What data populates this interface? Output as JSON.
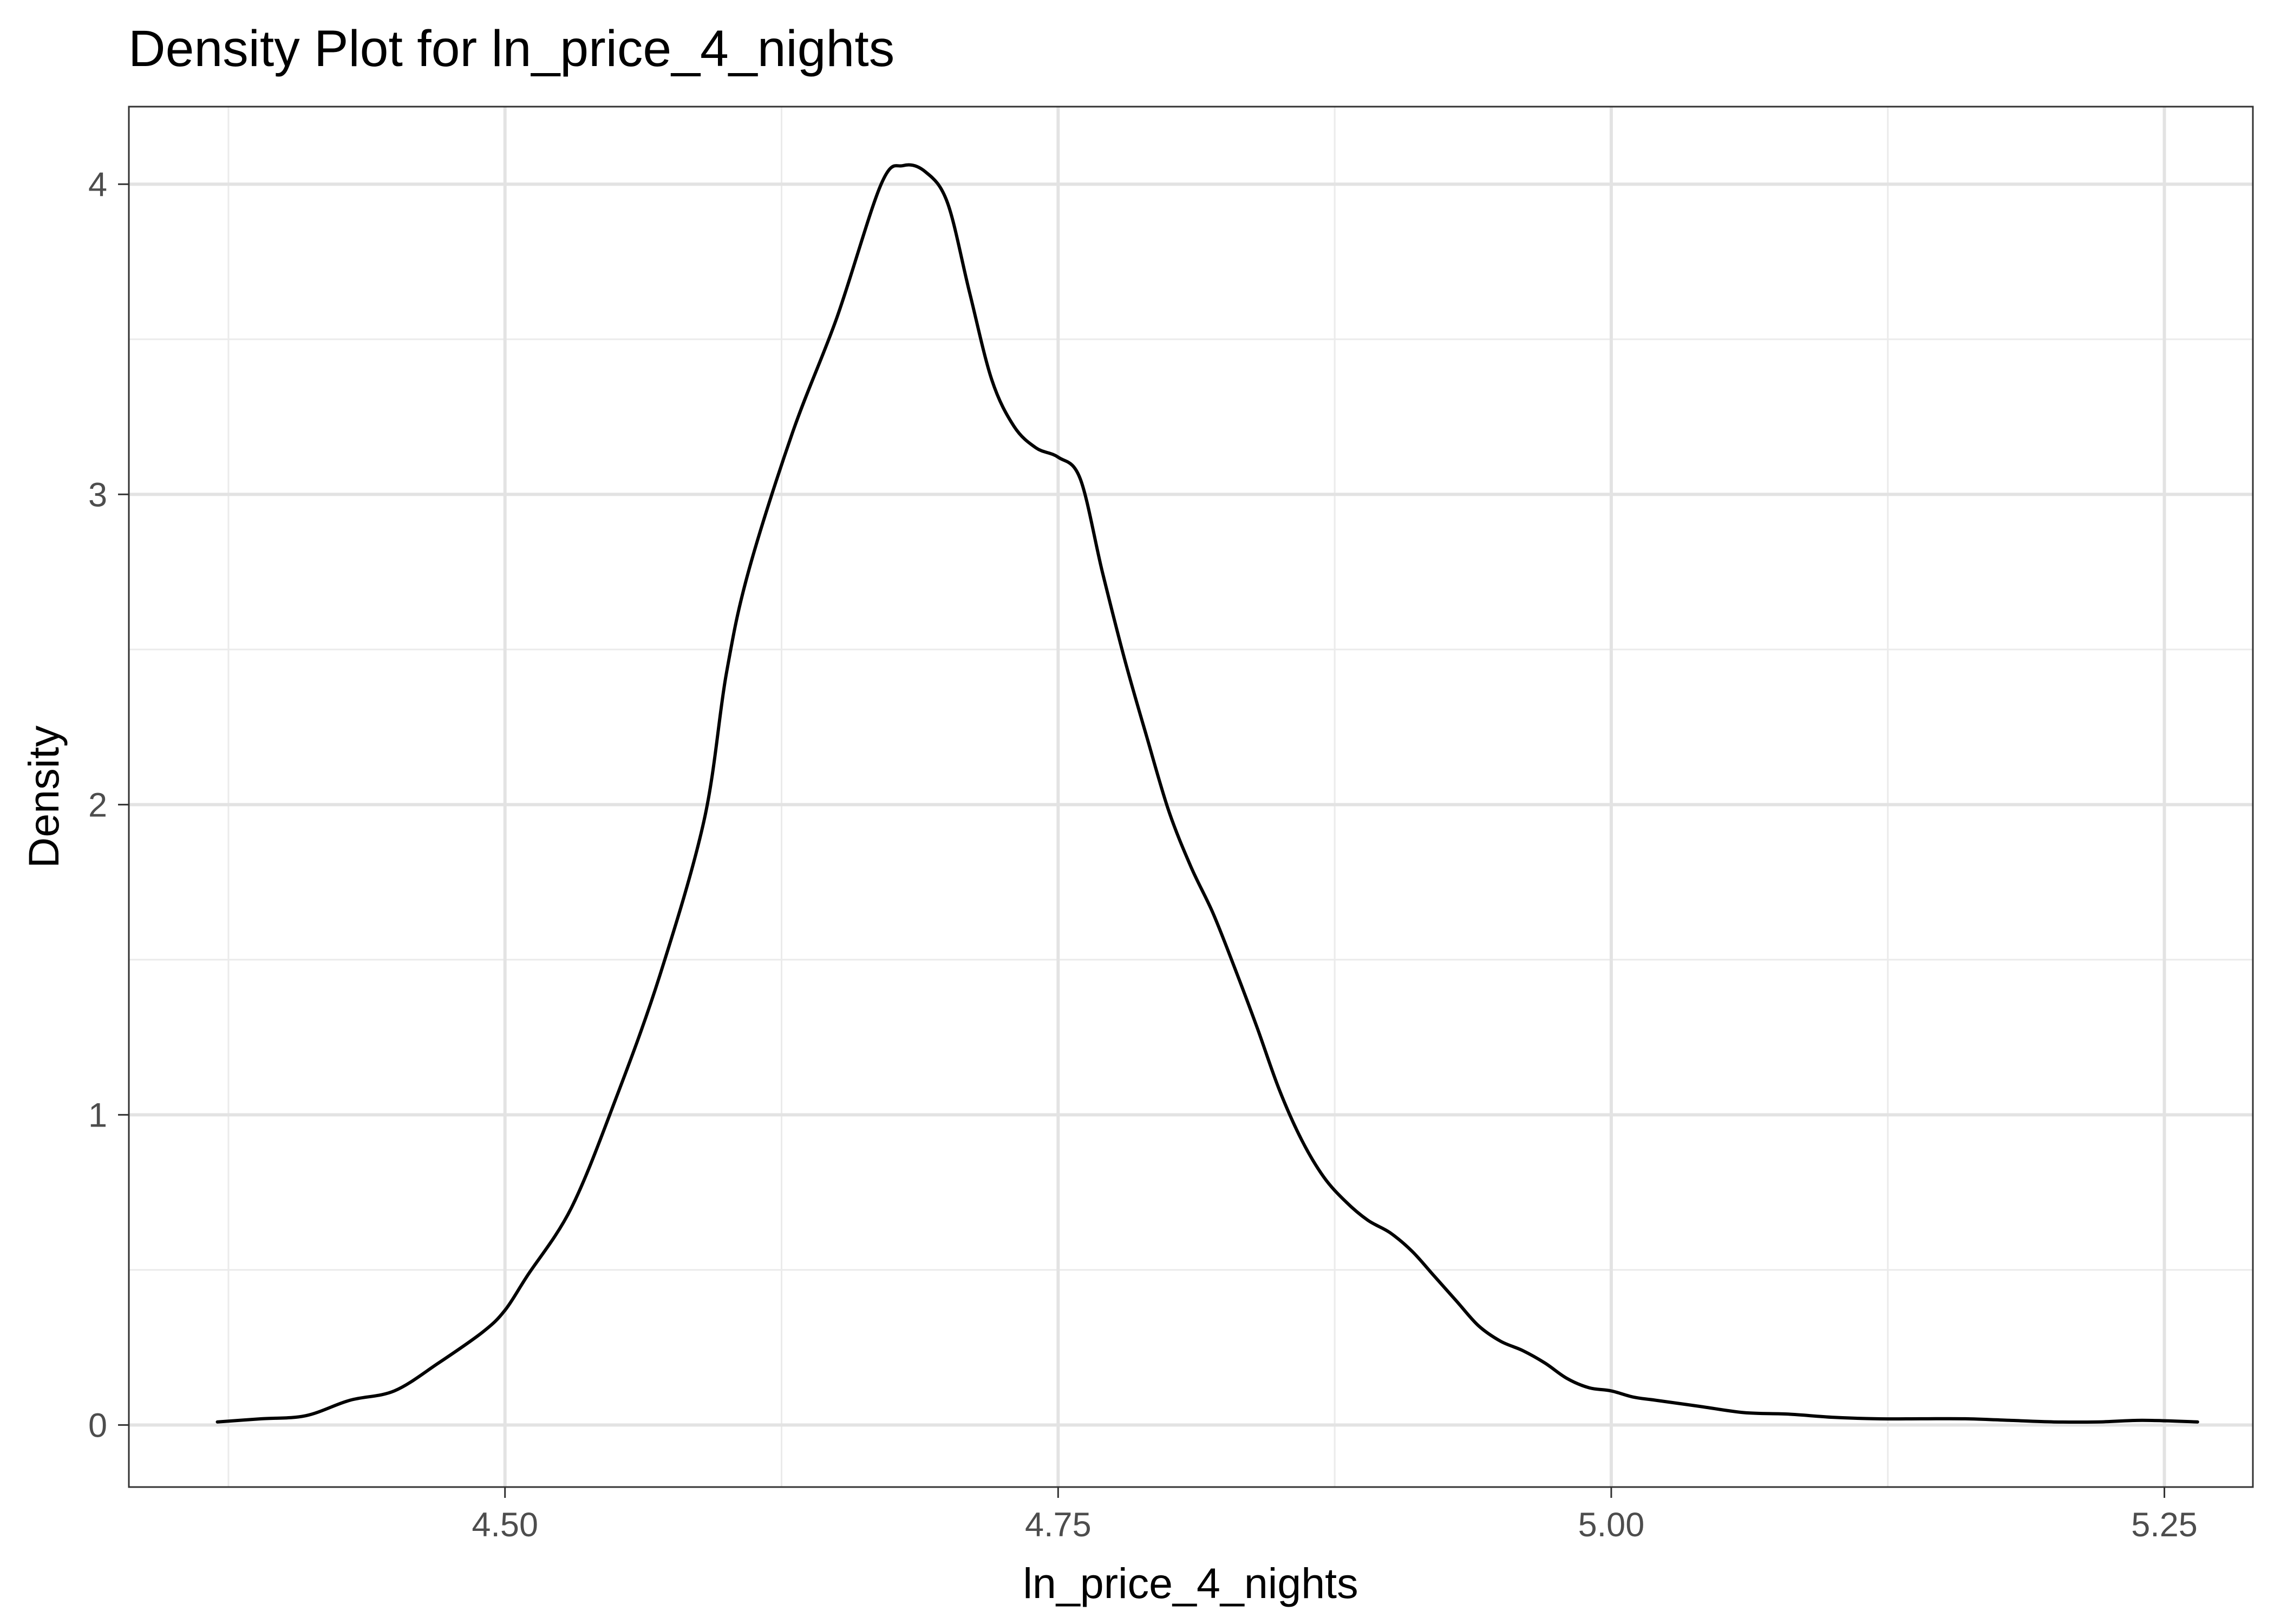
{
  "chart_data": {
    "type": "line",
    "title": "Density Plot for ln_price_4_nights",
    "xlabel": "ln_price_4_nights",
    "ylabel": "Density",
    "xlim": [
      4.33,
      5.29
    ],
    "ylim": [
      -0.2,
      4.25
    ],
    "xticks": [
      4.5,
      4.75,
      5.0,
      5.25
    ],
    "xtick_labels": [
      "4.50",
      "4.75",
      "5.00",
      "5.25"
    ],
    "xminor": [
      4.375,
      4.625,
      4.875,
      5.125
    ],
    "yticks": [
      0,
      1,
      2,
      3,
      4
    ],
    "ytick_labels": [
      "0",
      "1",
      "2",
      "3",
      "4"
    ],
    "yminor": [
      0.5,
      1.5,
      2.5,
      3.5
    ],
    "grid": true,
    "legend": "none",
    "series": [
      {
        "x": [
          4.37,
          4.39,
          4.41,
          4.43,
          4.45,
          4.47,
          4.49,
          4.5,
          4.51,
          4.53,
          4.55,
          4.57,
          4.59,
          4.6,
          4.61,
          4.63,
          4.65,
          4.67,
          4.68,
          4.69,
          4.7,
          4.71,
          4.72,
          4.73,
          4.74,
          4.75,
          4.76,
          4.77,
          4.78,
          4.79,
          4.8,
          4.81,
          4.82,
          4.83,
          4.84,
          4.85,
          4.86,
          4.87,
          4.88,
          4.89,
          4.9,
          4.91,
          4.92,
          4.93,
          4.94,
          4.95,
          4.96,
          4.97,
          4.98,
          4.99,
          5.0,
          5.01,
          5.02,
          5.04,
          5.06,
          5.08,
          5.1,
          5.12,
          5.14,
          5.16,
          5.18,
          5.2,
          5.22,
          5.24,
          5.265
        ],
        "y": [
          0.01,
          0.02,
          0.03,
          0.08,
          0.11,
          0.2,
          0.3,
          0.37,
          0.48,
          0.7,
          1.05,
          1.45,
          1.95,
          2.42,
          2.75,
          3.2,
          3.57,
          4.0,
          4.06,
          4.04,
          3.94,
          3.65,
          3.37,
          3.22,
          3.15,
          3.12,
          3.05,
          2.75,
          2.47,
          2.22,
          1.98,
          1.8,
          1.65,
          1.47,
          1.28,
          1.08,
          0.92,
          0.8,
          0.72,
          0.66,
          0.62,
          0.56,
          0.48,
          0.4,
          0.32,
          0.27,
          0.24,
          0.2,
          0.15,
          0.12,
          0.11,
          0.09,
          0.08,
          0.06,
          0.04,
          0.035,
          0.025,
          0.02,
          0.02,
          0.02,
          0.015,
          0.01,
          0.01,
          0.015,
          0.01
        ]
      }
    ]
  }
}
